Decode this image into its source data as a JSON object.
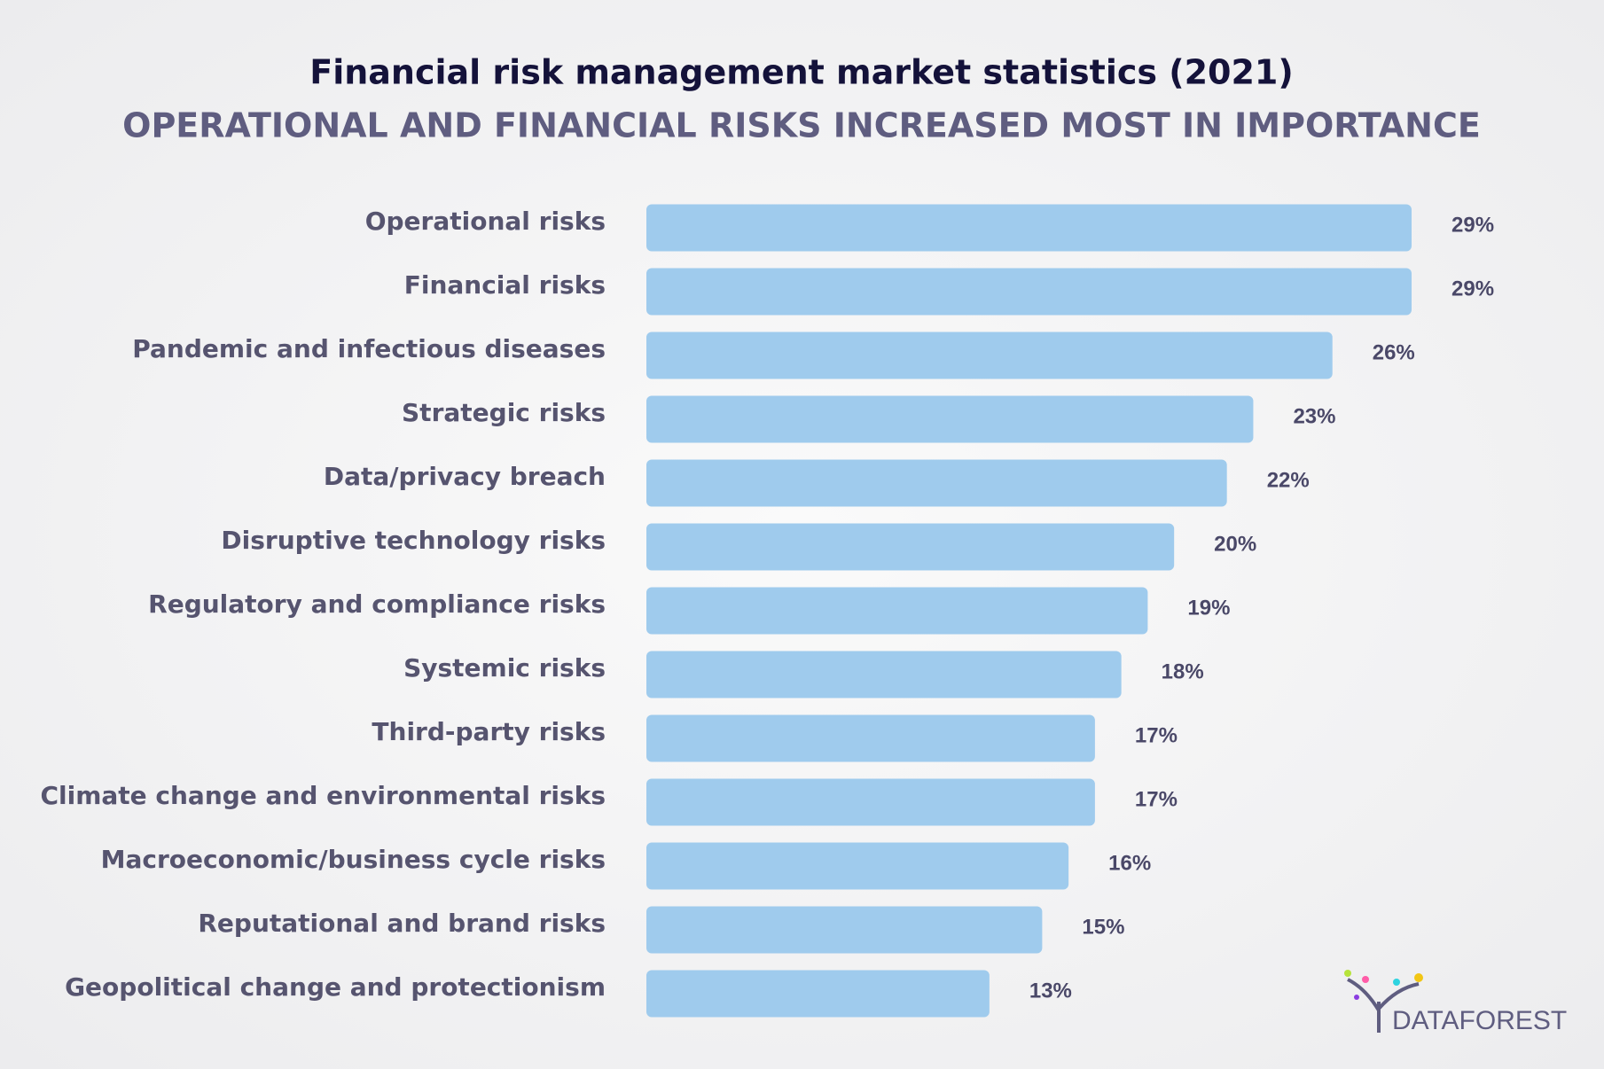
{
  "chart_data": {
    "type": "bar",
    "orientation": "horizontal",
    "title": "Financial risk management market statistics (2021)",
    "subtitle": "OPERATIONAL AND FINANCIAL RISKS INCREASED MOST IN IMPORTANCE",
    "categories": [
      "Operational risks",
      "Financial risks",
      "Pandemic and infectious diseases",
      "Strategic risks",
      "Data/privacy breach",
      "Disruptive technology risks",
      "Regulatory and compliance risks",
      "Systemic risks",
      "Third-party risks",
      "Climate change and environmental risks",
      "Macroeconomic/business cycle risks",
      "Reputational and brand risks",
      "Geopolitical change and protectionism"
    ],
    "values": [
      29,
      29,
      26,
      23,
      22,
      20,
      19,
      18,
      17,
      17,
      16,
      15,
      13
    ],
    "value_labels": [
      "29%",
      "29%",
      "26%",
      "23%",
      "22%",
      "20%",
      "19%",
      "18%",
      "17%",
      "17%",
      "16%",
      "15%",
      "13%"
    ],
    "color": "#9fcbed"
  },
  "logo": {
    "text": "DATAFOREST"
  }
}
